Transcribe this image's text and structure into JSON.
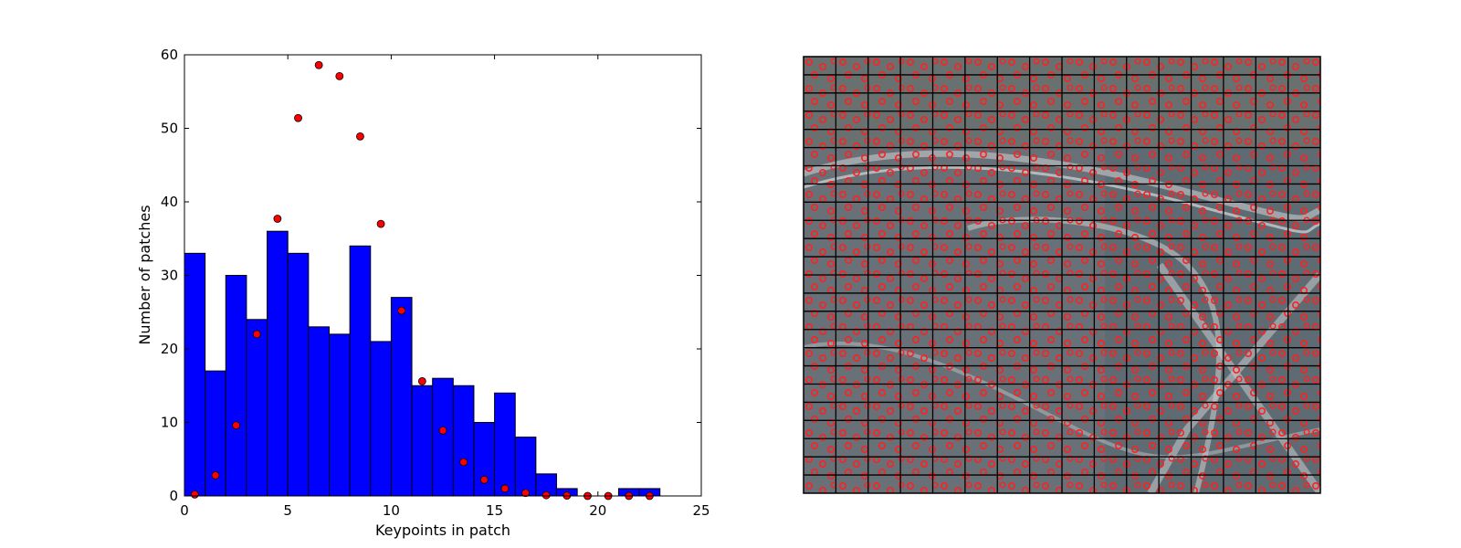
{
  "colors": {
    "bar_fill": "#0000ff",
    "bar_edge": "#000000",
    "point_fill": "#ff0000",
    "point_edge": "#000000",
    "grid_line": "#000000",
    "image_base": "#5f6b72",
    "keypoint_ring": "#ff2020"
  },
  "chart_data": [
    {
      "type": "bar",
      "title": "",
      "xlabel": "Keypoints in patch",
      "ylabel": "Number of patches",
      "xlim": [
        0,
        25
      ],
      "ylim": [
        0,
        60
      ],
      "xticks": [
        "0",
        "5",
        "10",
        "15",
        "20",
        "25"
      ],
      "yticks": [
        "0",
        "10",
        "20",
        "30",
        "40",
        "50",
        "60"
      ],
      "grid": false,
      "bars": [
        {
          "x0": 0,
          "x1": 1,
          "value": 33
        },
        {
          "x0": 1,
          "x1": 2,
          "value": 17
        },
        {
          "x0": 2,
          "x1": 3,
          "value": 30
        },
        {
          "x0": 3,
          "x1": 4,
          "value": 24
        },
        {
          "x0": 4,
          "x1": 5,
          "value": 36
        },
        {
          "x0": 5,
          "x1": 6,
          "value": 33
        },
        {
          "x0": 6,
          "x1": 7,
          "value": 23
        },
        {
          "x0": 7,
          "x1": 8,
          "value": 22
        },
        {
          "x0": 8,
          "x1": 9,
          "value": 34
        },
        {
          "x0": 9,
          "x1": 10,
          "value": 21
        },
        {
          "x0": 10,
          "x1": 11,
          "value": 27
        },
        {
          "x0": 11,
          "x1": 12,
          "value": 15
        },
        {
          "x0": 12,
          "x1": 13,
          "value": 16
        },
        {
          "x0": 13,
          "x1": 14,
          "value": 15
        },
        {
          "x0": 14,
          "x1": 15,
          "value": 10
        },
        {
          "x0": 15,
          "x1": 16,
          "value": 14
        },
        {
          "x0": 16,
          "x1": 17,
          "value": 8
        },
        {
          "x0": 17,
          "x1": 18,
          "value": 3
        },
        {
          "x0": 18,
          "x1": 19,
          "value": 1
        },
        {
          "x0": 19,
          "x1": 20,
          "value": 0
        },
        {
          "x0": 20,
          "x1": 21,
          "value": 0
        },
        {
          "x0": 21,
          "x1": 22,
          "value": 1
        },
        {
          "x0": 22,
          "x1": 23,
          "value": 1
        }
      ],
      "points": [
        {
          "x": 0.5,
          "y": 0.2
        },
        {
          "x": 1.5,
          "y": 2.8
        },
        {
          "x": 2.5,
          "y": 9.6
        },
        {
          "x": 3.5,
          "y": 22.0
        },
        {
          "x": 4.5,
          "y": 37.7
        },
        {
          "x": 5.5,
          "y": 51.4
        },
        {
          "x": 6.5,
          "y": 58.6
        },
        {
          "x": 7.5,
          "y": 57.1
        },
        {
          "x": 8.5,
          "y": 48.9
        },
        {
          "x": 9.5,
          "y": 37.0
        },
        {
          "x": 10.5,
          "y": 25.2
        },
        {
          "x": 11.5,
          "y": 15.6
        },
        {
          "x": 12.5,
          "y": 8.9
        },
        {
          "x": 13.5,
          "y": 4.6
        },
        {
          "x": 14.5,
          "y": 2.2
        },
        {
          "x": 15.5,
          "y": 1.0
        },
        {
          "x": 16.5,
          "y": 0.4
        },
        {
          "x": 17.5,
          "y": 0.1
        },
        {
          "x": 18.5,
          "y": 0.05
        },
        {
          "x": 19.5,
          "y": 0.0
        },
        {
          "x": 20.5,
          "y": 0.0
        },
        {
          "x": 21.5,
          "y": 0.0
        },
        {
          "x": 22.5,
          "y": 0.0
        }
      ]
    },
    {
      "type": "image",
      "description": "aerial image with keypoint overlay",
      "grid_columns": 16,
      "grid_rows": 24
    }
  ]
}
